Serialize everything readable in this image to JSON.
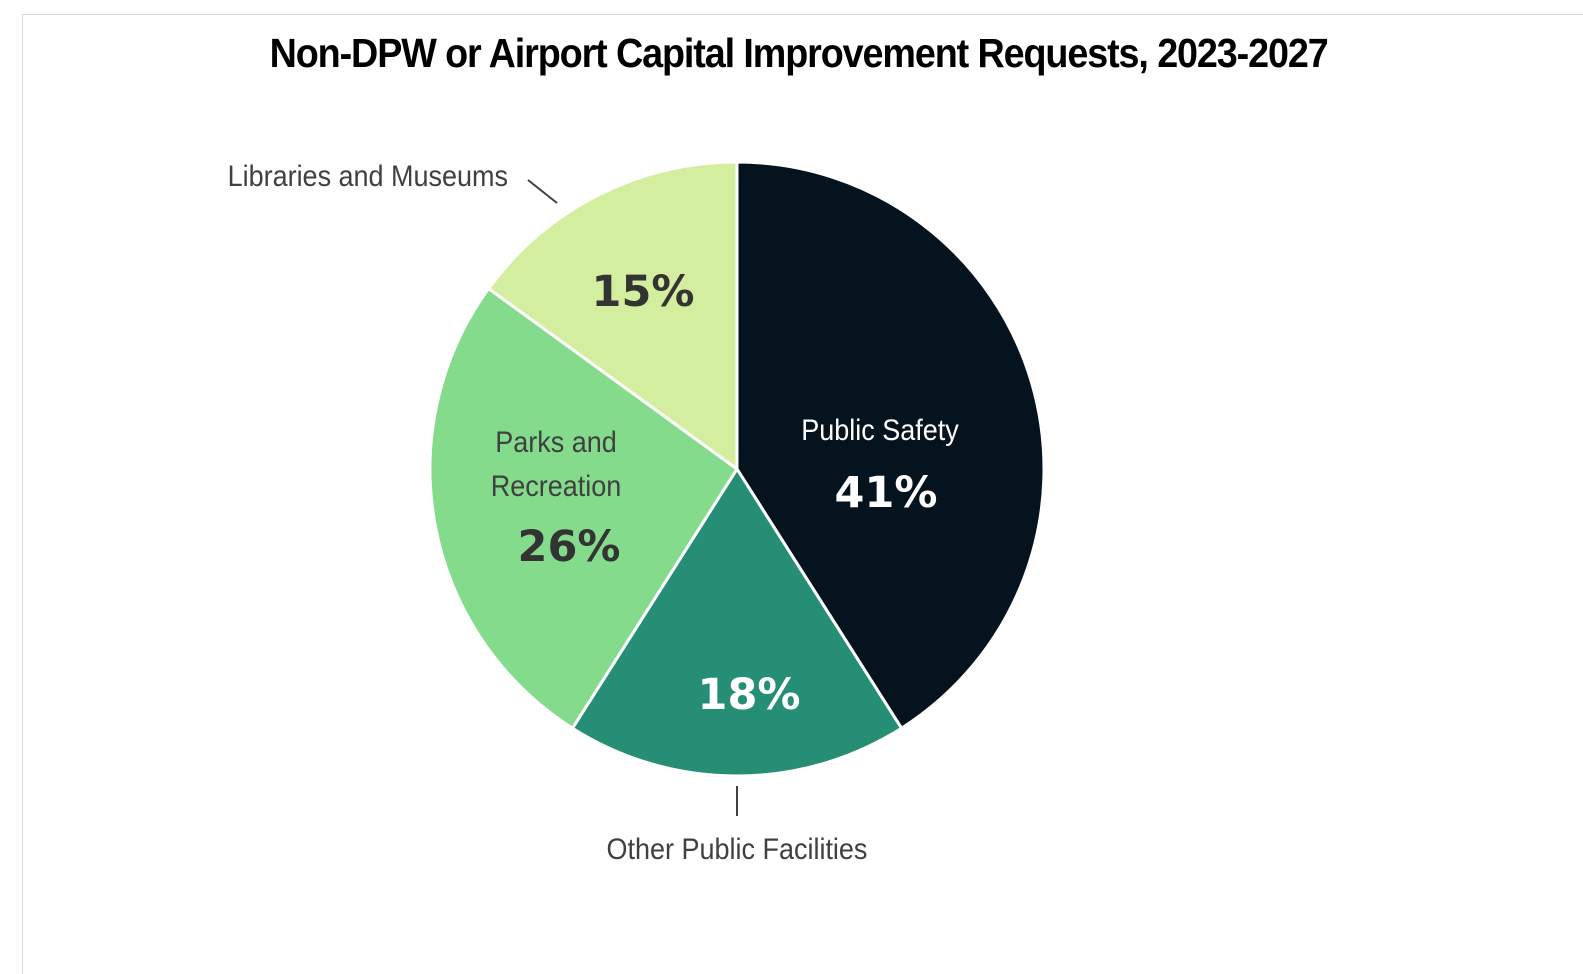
{
  "chart_data": {
    "type": "pie",
    "title": "Non-DPW or Airport Capital Improvement Requests, 2023-2027",
    "slices": [
      {
        "category": "Public Safety",
        "value": 41,
        "label": "41%",
        "color": "#05131f",
        "text_color": "#ffffff",
        "category_text_color": "#ffffff"
      },
      {
        "category": "Other Public Facilities",
        "value": 18,
        "label": "18%",
        "color": "#268e74",
        "text_color": "#ffffff",
        "category_text_color": "#404040"
      },
      {
        "category": "Parks and Recreation",
        "value": 26,
        "label": "26%",
        "color": "#84db8c",
        "text_color": "#333333",
        "category_text_color": "#404040"
      },
      {
        "category": "Libraries and Museums",
        "value": 15,
        "label": "15%",
        "color": "#d3ee9f",
        "text_color": "#333333",
        "category_text_color": "#404040"
      }
    ],
    "start_angle": "12 o'clock",
    "direction": "clockwise",
    "legend": "none"
  }
}
